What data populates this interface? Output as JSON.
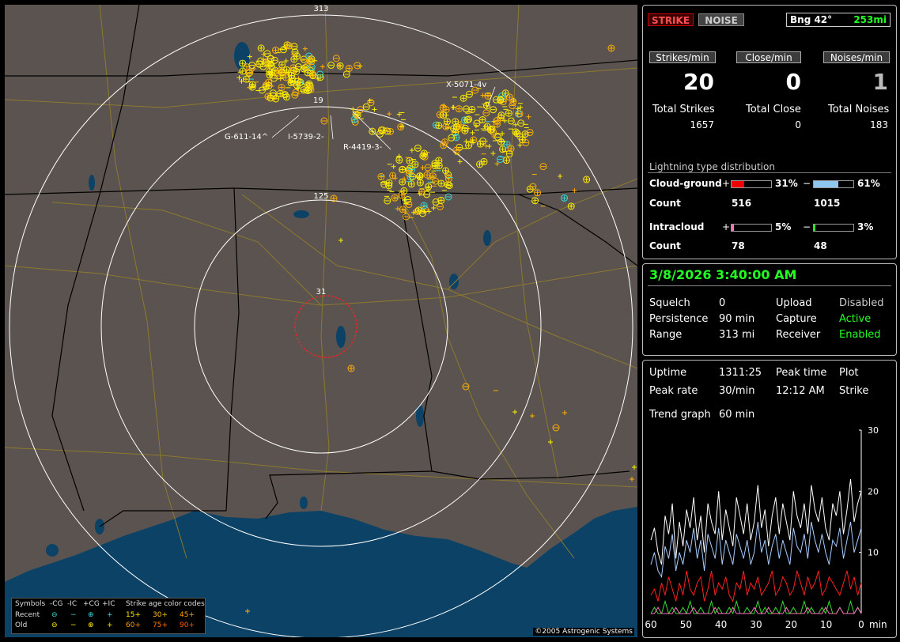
{
  "map": {
    "range_labels": [
      "313",
      "125",
      "31"
    ],
    "station_labels": [
      {
        "id": "g611",
        "text": "G-611-14^"
      },
      {
        "id": "i5739",
        "text": "I-5739-2-"
      },
      {
        "id": "r4419",
        "text": "R-4419-3-"
      },
      {
        "id": "x5071",
        "text": "X-5071-4v"
      },
      {
        "id": "s19",
        "text": "19"
      }
    ],
    "copyright": "©2005 Astrogenic Systems",
    "legend": {
      "symbols_label": "Symbols",
      "col_minus_cg": "-CG",
      "col_minus_ic": "-IC",
      "col_plus_cg": "+CG",
      "col_plus_ic": "+IC",
      "age_title": "Strike age color codes",
      "recent": "Recent",
      "old": "Old",
      "ages_recent": [
        "15+",
        "30+",
        "45+"
      ],
      "ages_old": [
        "60+",
        "75+",
        "90+"
      ]
    },
    "colors": {
      "land": "#5b534f",
      "water": "#0b4266",
      "ring": "#ffffff",
      "close_ring": "#ff2020",
      "roads": "#8c7a2f",
      "borders": "#000000",
      "recent": "#38d7d7",
      "old": "#ffef00",
      "aged": "#ffb000"
    }
  },
  "panel1": {
    "btn_strike": "STRIKE",
    "btn_noise": "NOISE",
    "bearing": "Bng 42°",
    "distance": "253mi",
    "hdr_strikes": "Strikes/min",
    "hdr_close": "Close/min",
    "hdr_noises": "Noises/min",
    "strikes_rate": "20",
    "close_rate": "0",
    "noise_rate": "1",
    "total_strikes_label": "Total Strikes",
    "total_close_label": "Total Close",
    "total_noises_label": "Total Noises",
    "total_strikes": "1657",
    "total_close": "0",
    "total_noises": "183",
    "dist_title": "Lightning type distribution",
    "cg_label": "Cloud-ground",
    "ic_label": "Intracloud",
    "count_label": "Count",
    "plus": "+",
    "minus": "−",
    "cg_plus_pct_text": "31%",
    "cg_minus_pct_text": "61%",
    "ic_plus_pct_text": "5%",
    "ic_minus_pct_text": "3%",
    "cg_plus_pct": 31,
    "cg_minus_pct": 61,
    "ic_plus_pct": 5,
    "ic_minus_pct": 3,
    "cg_plus_count": "516",
    "cg_minus_count": "1015",
    "ic_plus_count": "78",
    "ic_minus_count": "48"
  },
  "panel2": {
    "datetime": "3/8/2026 3:40:00 AM",
    "squelch_label": "Squelch",
    "squelch": "0",
    "persistence_label": "Persistence",
    "persistence": "90 min",
    "range_label": "Range",
    "range": "313 mi",
    "upload_label": "Upload",
    "upload": "Disabled",
    "capture_label": "Capture",
    "capture": "Active",
    "receiver_label": "Receiver",
    "receiver": "Enabled"
  },
  "panel3": {
    "uptime_label": "Uptime",
    "uptime": "1311:25",
    "peak_time_label": "Peak time",
    "plot_label": "Plot",
    "peak_rate_label": "Peak rate",
    "peak_rate": "30/min",
    "peak_time": "12:12 AM",
    "plot": "Strike",
    "trend_label": "Trend graph",
    "trend": "60 min",
    "trend_chart": {
      "y_ticks": [
        "30",
        "20",
        "10"
      ],
      "x_ticks": [
        "60",
        "50",
        "40",
        "30",
        "20",
        "10",
        "0"
      ],
      "x_unit": "min",
      "ymax": 30,
      "series": [
        {
          "color": "#ffffff",
          "values": [
            12,
            14,
            10,
            8,
            16,
            13,
            18,
            9,
            15,
            11,
            17,
            14,
            19,
            12,
            16,
            10,
            18,
            15,
            13,
            20,
            12,
            17,
            14,
            11,
            19,
            16,
            13,
            18,
            12,
            15,
            21,
            14,
            17,
            11,
            16,
            19,
            13,
            18,
            15,
            12,
            20,
            16,
            14,
            18,
            13,
            21,
            17,
            15,
            19,
            14,
            12,
            18,
            16,
            20,
            13,
            17,
            22,
            15,
            18,
            20
          ]
        },
        {
          "color": "#a9ccff",
          "values": [
            8,
            10,
            7,
            6,
            11,
            9,
            13,
            7,
            10,
            8,
            12,
            10,
            14,
            9,
            12,
            7,
            13,
            11,
            9,
            14,
            8,
            12,
            10,
            8,
            13,
            11,
            9,
            12,
            8,
            10,
            15,
            10,
            12,
            8,
            11,
            13,
            9,
            12,
            10,
            8,
            14,
            11,
            10,
            13,
            9,
            15,
            12,
            10,
            13,
            10,
            8,
            12,
            11,
            14,
            9,
            12,
            15,
            10,
            12,
            14
          ]
        },
        {
          "color": "#ff2020",
          "values": [
            3,
            4,
            2,
            5,
            3,
            6,
            4,
            2,
            5,
            3,
            7,
            4,
            3,
            5,
            6,
            2,
            4,
            7,
            3,
            5,
            4,
            6,
            3,
            2,
            5,
            4,
            7,
            3,
            5,
            4,
            6,
            3,
            4,
            5,
            7,
            3,
            4,
            6,
            5,
            3,
            4,
            7,
            5,
            3,
            6,
            4,
            5,
            7,
            3,
            4,
            6,
            5,
            4,
            3,
            5,
            7,
            4,
            6,
            3,
            5
          ]
        },
        {
          "color": "#33dd33",
          "values": [
            0,
            1,
            0,
            0,
            2,
            0,
            1,
            0,
            0,
            1,
            0,
            2,
            0,
            0,
            1,
            0,
            0,
            2,
            0,
            1,
            0,
            0,
            1,
            0,
            2,
            0,
            0,
            1,
            0,
            0,
            2,
            0,
            1,
            0,
            0,
            1,
            0,
            2,
            0,
            0,
            1,
            0,
            0,
            2,
            0,
            1,
            0,
            0,
            1,
            0,
            2,
            0,
            0,
            1,
            0,
            0,
            2,
            0,
            1,
            0
          ]
        },
        {
          "color": "#ff70c0",
          "values": [
            0,
            0,
            1,
            0,
            0,
            0,
            0,
            1,
            0,
            0,
            0,
            0,
            1,
            0,
            0,
            0,
            0,
            0,
            1,
            0,
            0,
            0,
            0,
            1,
            0,
            0,
            0,
            0,
            0,
            1,
            0,
            0,
            0,
            1,
            0,
            0,
            0,
            0,
            1,
            0,
            0,
            0,
            0,
            0,
            1,
            0,
            0,
            0,
            0,
            1,
            0,
            0,
            0,
            1,
            0,
            0,
            0,
            0,
            1,
            0
          ]
        }
      ]
    }
  }
}
